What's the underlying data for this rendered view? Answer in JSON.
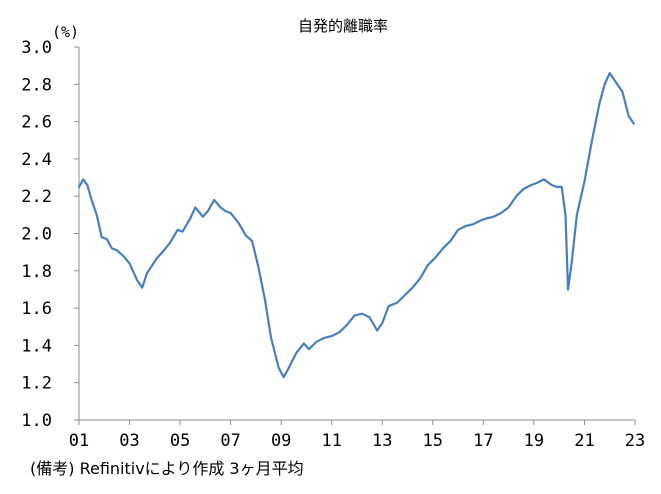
{
  "chart_data": {
    "type": "line",
    "title": "自発的離職率",
    "ylabel": "(%)",
    "xlabel": "",
    "ylim": [
      1.0,
      3.0
    ],
    "yticks": [
      "1.0",
      "1.2",
      "1.4",
      "1.6",
      "1.8",
      "2.0",
      "2.2",
      "2.4",
      "2.6",
      "2.8",
      "3.0"
    ],
    "xlim": [
      2001.0,
      2023.0
    ],
    "xticks": [
      {
        "label": "01",
        "value": 2001
      },
      {
        "label": "03",
        "value": 2003
      },
      {
        "label": "05",
        "value": 2005
      },
      {
        "label": "07",
        "value": 2007
      },
      {
        "label": "09",
        "value": 2009
      },
      {
        "label": "11",
        "value": 2011
      },
      {
        "label": "13",
        "value": 2013
      },
      {
        "label": "15",
        "value": 2015
      },
      {
        "label": "17",
        "value": 2017
      },
      {
        "label": "19",
        "value": 2019
      },
      {
        "label": "21",
        "value": 2021
      },
      {
        "label": "23",
        "value": 2023
      }
    ],
    "grid": false,
    "line_color": "#4a7ebb",
    "series": [
      {
        "name": "",
        "x": [
          2001.0,
          2001.17,
          2001.33,
          2001.5,
          2001.7,
          2001.9,
          2002.1,
          2002.3,
          2002.5,
          2002.75,
          2003.0,
          2003.3,
          2003.5,
          2003.7,
          2003.9,
          2004.1,
          2004.3,
          2004.6,
          2004.9,
          2005.1,
          2005.4,
          2005.6,
          2005.9,
          2006.1,
          2006.35,
          2006.6,
          2006.8,
          2007.0,
          2007.3,
          2007.6,
          2007.85,
          2008.1,
          2008.35,
          2008.6,
          2008.9,
          2009.1,
          2009.3,
          2009.6,
          2009.9,
          2010.1,
          2010.4,
          2010.7,
          2011.0,
          2011.3,
          2011.6,
          2011.9,
          2012.2,
          2012.5,
          2012.8,
          2013.0,
          2013.25,
          2013.6,
          2013.9,
          2014.2,
          2014.5,
          2014.8,
          2015.1,
          2015.4,
          2015.7,
          2016.0,
          2016.3,
          2016.6,
          2016.9,
          2017.1,
          2017.4,
          2017.7,
          2018.0,
          2018.3,
          2018.6,
          2018.9,
          2019.1,
          2019.4,
          2019.7,
          2019.9,
          2020.1,
          2020.25,
          2020.35,
          2020.5,
          2020.7,
          2021.0,
          2021.3,
          2021.6,
          2021.8,
          2022.0,
          2022.2,
          2022.5,
          2022.75,
          2022.95
        ],
        "values": [
          2.25,
          2.29,
          2.26,
          2.18,
          2.1,
          1.98,
          1.97,
          1.92,
          1.91,
          1.88,
          1.84,
          1.75,
          1.71,
          1.79,
          1.83,
          1.87,
          1.9,
          1.95,
          2.02,
          2.01,
          2.08,
          2.14,
          2.09,
          2.12,
          2.18,
          2.14,
          2.12,
          2.11,
          2.06,
          1.99,
          1.96,
          1.82,
          1.65,
          1.44,
          1.28,
          1.23,
          1.28,
          1.36,
          1.41,
          1.38,
          1.42,
          1.44,
          1.45,
          1.47,
          1.51,
          1.56,
          1.57,
          1.55,
          1.48,
          1.52,
          1.61,
          1.63,
          1.67,
          1.71,
          1.76,
          1.83,
          1.87,
          1.92,
          1.96,
          2.02,
          2.04,
          2.05,
          2.07,
          2.08,
          2.09,
          2.11,
          2.14,
          2.2,
          2.24,
          2.26,
          2.27,
          2.29,
          2.26,
          2.25,
          2.25,
          2.1,
          1.7,
          1.85,
          2.1,
          2.28,
          2.5,
          2.7,
          2.8,
          2.86,
          2.82,
          2.76,
          2.63,
          2.59
        ]
      }
    ]
  },
  "footnote": "(備考) Refinitivにより作成 3ヶ月平均"
}
